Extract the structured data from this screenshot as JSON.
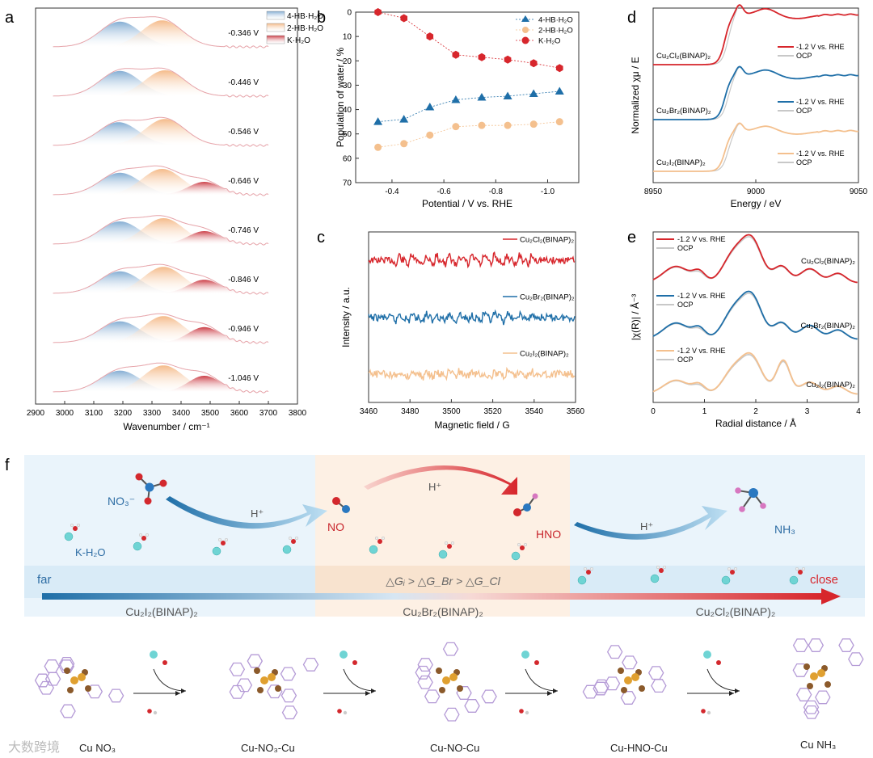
{
  "colors": {
    "red": "#d7262c",
    "blue": "#1f6fa8",
    "orange": "#f4c08e",
    "grey": "#c8c8c8",
    "fitpink": "#e6a3a9",
    "panel_blue_bg": "#eaf4fb",
    "panel_orange_bg": "#fdf0e4"
  },
  "panel_labels": {
    "a": "a",
    "b": "b",
    "c": "c",
    "d": "d",
    "e": "e",
    "f": "f"
  },
  "chart_data": [
    {
      "panel": "a",
      "type": "area",
      "xlabel": "Wavenumber / cm⁻¹",
      "ylabel": "",
      "xlim": [
        2900,
        3800
      ],
      "x_ticks": [
        "2900",
        "3000",
        "3100",
        "3200",
        "3300",
        "3400",
        "3500",
        "3600",
        "3700",
        "3800"
      ],
      "legend": [
        "4-HB·H₂O",
        "2-HB·H₂O",
        "K·H₂O"
      ],
      "legend_position": "top-right",
      "series": [
        {
          "name": "-0.346 V",
          "peak_4HB": 3190,
          "amp_4HB": 0.78,
          "peak_2HB": 3335,
          "amp_2HB": 0.82,
          "peak_K": 3480,
          "amp_K": 0.0
        },
        {
          "name": "-0.446 V",
          "peak_4HB": 3190,
          "amp_4HB": 0.78,
          "peak_2HB": 3345,
          "amp_2HB": 0.8,
          "peak_K": 3480,
          "amp_K": 0.0
        },
        {
          "name": "-0.546 V",
          "peak_4HB": 3185,
          "amp_4HB": 0.72,
          "peak_2HB": 3345,
          "amp_2HB": 0.82,
          "peak_K": 3480,
          "amp_K": 0.0
        },
        {
          "name": "-0.646 V",
          "peak_4HB": 3190,
          "amp_4HB": 0.68,
          "peak_2HB": 3335,
          "amp_2HB": 0.8,
          "peak_K": 3480,
          "amp_K": 0.4
        },
        {
          "name": "-0.746 V",
          "peak_4HB": 3190,
          "amp_4HB": 0.7,
          "peak_2HB": 3340,
          "amp_2HB": 0.8,
          "peak_K": 3480,
          "amp_K": 0.4
        },
        {
          "name": "-0.846 V",
          "peak_4HB": 3190,
          "amp_4HB": 0.68,
          "peak_2HB": 3340,
          "amp_2HB": 0.82,
          "peak_K": 3480,
          "amp_K": 0.42
        },
        {
          "name": "-0.946 V",
          "peak_4HB": 3190,
          "amp_4HB": 0.66,
          "peak_2HB": 3340,
          "amp_2HB": 0.82,
          "peak_K": 3480,
          "amp_K": 0.48
        },
        {
          "name": "-1.046 V",
          "peak_4HB": 3190,
          "amp_4HB": 0.66,
          "peak_2HB": 3340,
          "amp_2HB": 0.82,
          "peak_K": 3480,
          "amp_K": 0.5
        }
      ]
    },
    {
      "panel": "b",
      "type": "scatter",
      "xlabel": "Potential / V vs. RHE",
      "ylabel": "Population of water / %",
      "xlim": [
        -0.26,
        -1.12
      ],
      "ylim": [
        0,
        70
      ],
      "y_inverted": true,
      "x_ticks": [
        "-0.4",
        "-0.6",
        "-0.8",
        "-1.0"
      ],
      "y_ticks": [
        "0",
        "10",
        "20",
        "30",
        "40",
        "50",
        "60",
        "70"
      ],
      "legend_position": "top-right",
      "x": [
        -0.346,
        -0.446,
        -0.546,
        -0.646,
        -0.746,
        -0.846,
        -0.946,
        -1.046
      ],
      "series": [
        {
          "name": "4-HB·H₂O",
          "marker": "triangle",
          "values": [
            45,
            44,
            39,
            36,
            35,
            34.5,
            33.5,
            32.5
          ]
        },
        {
          "name": "2-HB·H₂O",
          "marker": "circle",
          "values": [
            55.5,
            54,
            50.5,
            47,
            46.5,
            46.5,
            46,
            45
          ]
        },
        {
          "name": "K·H₂O",
          "marker": "hexagon",
          "values": [
            0,
            2.5,
            10,
            17.5,
            18.5,
            19.5,
            21,
            23
          ]
        }
      ]
    },
    {
      "panel": "c",
      "type": "line",
      "xlabel": "Magnetic field / G",
      "ylabel": "Intensity / a.u.",
      "xlim": [
        3460,
        3560
      ],
      "x_ticks": [
        "3460",
        "3480",
        "3500",
        "3520",
        "3540",
        "3560"
      ],
      "series": [
        {
          "name": "Cu₂Cl₂(BINAP)₂",
          "offset": 2,
          "noise": 0.12
        },
        {
          "name": "Cu₂Br₂(BINAP)₂",
          "offset": 1,
          "noise": 0.1
        },
        {
          "name": "Cu₂I₂(BINAP)₂",
          "offset": 0,
          "noise": 0.08
        }
      ],
      "hyperfine_lines": [
        3474,
        3480,
        3487,
        3492,
        3498,
        3503,
        3509,
        3515,
        3520,
        3526,
        3532,
        3538
      ]
    },
    {
      "panel": "d",
      "type": "line",
      "xlabel": "Energy / eV",
      "ylabel": "Normalized χμ / E",
      "xlim": [
        8950,
        9050
      ],
      "x_ticks": [
        "8950",
        "9000",
        "9050"
      ],
      "series": [
        {
          "name": "Cu₂Cl₂(BINAP)₂",
          "legend": [
            "-1.2 V vs. RHE",
            "OCP"
          ],
          "offset": 2
        },
        {
          "name": "Cu₂Br₂(BINAP)₂",
          "legend": [
            "-1.2 V vs. RHE",
            "OCP"
          ],
          "offset": 1
        },
        {
          "name": "Cu₂I₂(BINAP)₂",
          "legend": [
            "-1.2 V vs. RHE",
            "OCP"
          ],
          "offset": 0
        }
      ]
    },
    {
      "panel": "e",
      "type": "line",
      "xlabel": "Radial distance / Å",
      "ylabel": "|χ(R)| / Å⁻³",
      "xlim": [
        0,
        4
      ],
      "x_ticks": [
        "0",
        "1",
        "2",
        "3",
        "4"
      ],
      "series": [
        {
          "name": "Cu₂Cl₂(BINAP)₂",
          "legend": [
            "-1.2 V vs. RHE",
            "OCP"
          ],
          "offset": 2
        },
        {
          "name": "Cu₂Br₂(BINAP)₂",
          "legend": [
            "-1.2 V vs. RHE",
            "OCP"
          ],
          "offset": 1
        },
        {
          "name": "Cu₂I₂(BINAP)₂",
          "legend": [
            "-1.2 V vs. RHE",
            "OCP"
          ],
          "offset": 0
        }
      ]
    }
  ],
  "scheme": {
    "no3": "NO₃⁻",
    "kh2o": "K-H₂O",
    "no": "NO",
    "hno": "HNO",
    "nh3": "NH₃",
    "hplus": "H⁺",
    "far": "far",
    "close": "close",
    "delta_g": "△Gᵢ > △G_Br > △G_Cl",
    "catalysts": [
      "Cu₂I₂(BINAP)₂",
      "Cu₂Br₂(BINAP)₂",
      "Cu₂Cl₂(BINAP)₂"
    ],
    "steps": [
      "Cu NO₃",
      "Cu-NO₃-Cu",
      "Cu-NO-Cu",
      "Cu-HNO-Cu",
      "Cu   NH₃"
    ]
  },
  "watermark": "大数跨境"
}
